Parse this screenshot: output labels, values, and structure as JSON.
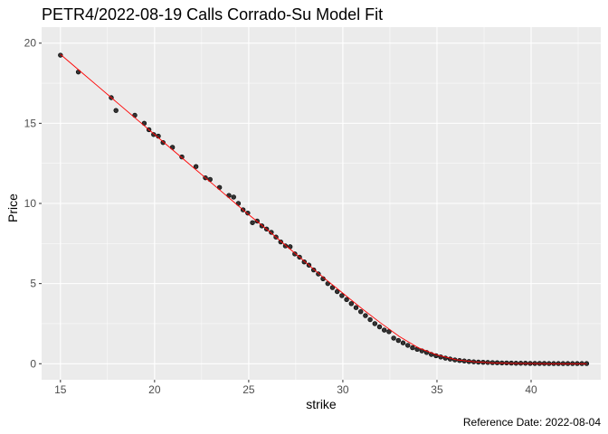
{
  "chart_data": {
    "type": "scatter",
    "title": "PETR4/2022-08-19 Calls Corrado-Su Model Fit",
    "xlabel": "strike",
    "ylabel": "Price",
    "caption": "Reference Date: 2022-08-04",
    "xlim": [
      14.0,
      43.7
    ],
    "ylim": [
      -1.0,
      21.0
    ],
    "x_ticks": [
      15,
      20,
      25,
      30,
      35,
      40
    ],
    "y_ticks": [
      0,
      5,
      10,
      15,
      20
    ],
    "x_tick_labels": [
      "15",
      "20",
      "25",
      "30",
      "35",
      "40"
    ],
    "y_tick_labels": [
      "0",
      "5",
      "10",
      "15",
      "20"
    ],
    "grid": true,
    "panel_background": "#ebebeb",
    "grid_color": "#ffffff",
    "series": [
      {
        "kind": "points",
        "color": "#000000",
        "fill": "#333333",
        "x": [
          15.0,
          15.95,
          17.7,
          17.95,
          18.95,
          19.45,
          19.7,
          19.95,
          20.2,
          20.45,
          20.95,
          21.45,
          22.2,
          22.7,
          22.95,
          23.45,
          23.95,
          24.2,
          24.45,
          24.7,
          24.95,
          25.2,
          25.45,
          25.7,
          25.95,
          26.2,
          26.45,
          26.7,
          26.95,
          27.2,
          27.45,
          27.7,
          27.95,
          28.2,
          28.45,
          28.7,
          28.95,
          29.2,
          29.45,
          29.7,
          29.95,
          30.2,
          30.45,
          30.7,
          30.95,
          31.2,
          31.45,
          31.7,
          31.95,
          32.2,
          32.45,
          32.7,
          32.95,
          33.2,
          33.45,
          33.7,
          33.95,
          34.2,
          34.45,
          34.7,
          34.95,
          35.2,
          35.45,
          35.7,
          35.95,
          36.2,
          36.45,
          36.7,
          36.95,
          37.2,
          37.45,
          37.7,
          37.95,
          38.2,
          38.45,
          38.7,
          38.95,
          39.2,
          39.45,
          39.7,
          39.95,
          40.2,
          40.45,
          40.7,
          40.95,
          41.2,
          41.45,
          41.7,
          41.95,
          42.2,
          42.45,
          42.7,
          42.95
        ],
        "y": [
          19.25,
          18.2,
          16.6,
          15.8,
          15.5,
          15.0,
          14.6,
          14.3,
          14.2,
          13.8,
          13.5,
          12.9,
          12.3,
          11.6,
          11.5,
          11.0,
          10.5,
          10.4,
          10.0,
          9.6,
          9.4,
          8.8,
          8.9,
          8.6,
          8.4,
          8.2,
          7.9,
          7.6,
          7.35,
          7.3,
          6.85,
          6.65,
          6.35,
          6.15,
          5.85,
          5.6,
          5.3,
          5.0,
          4.75,
          4.5,
          4.25,
          4.0,
          3.75,
          3.5,
          3.25,
          3.0,
          2.75,
          2.5,
          2.3,
          2.1,
          2.0,
          1.6,
          1.45,
          1.3,
          1.15,
          1.0,
          0.9,
          0.8,
          0.7,
          0.58,
          0.5,
          0.42,
          0.35,
          0.29,
          0.24,
          0.2,
          0.17,
          0.14,
          0.12,
          0.1,
          0.09,
          0.08,
          0.07,
          0.06,
          0.05,
          0.05,
          0.04,
          0.03,
          0.03,
          0.03,
          0.02,
          0.02,
          0.02,
          0.02,
          0.01,
          0.01,
          0.01,
          0.01,
          0.01,
          0.01,
          0.01,
          0.01,
          0.01
        ]
      },
      {
        "kind": "line",
        "color": "#ff0000",
        "x": [
          15.0,
          16.0,
          17.0,
          18.0,
          19.0,
          20.0,
          21.0,
          22.0,
          23.0,
          24.0,
          25.0,
          26.0,
          27.0,
          28.0,
          29.0,
          30.0,
          31.0,
          32.0,
          33.0,
          34.0,
          35.0,
          36.0,
          37.0,
          38.0,
          39.0,
          40.0,
          41.0,
          42.0,
          42.95
        ],
        "y": [
          19.3,
          18.3,
          17.3,
          16.3,
          15.3,
          14.3,
          13.3,
          12.3,
          11.3,
          10.3,
          9.3,
          8.35,
          7.35,
          6.35,
          5.35,
          4.4,
          3.45,
          2.55,
          1.7,
          1.0,
          0.55,
          0.25,
          0.12,
          0.05,
          0.02,
          0.01,
          0.0,
          0.0,
          0.0
        ]
      }
    ]
  }
}
